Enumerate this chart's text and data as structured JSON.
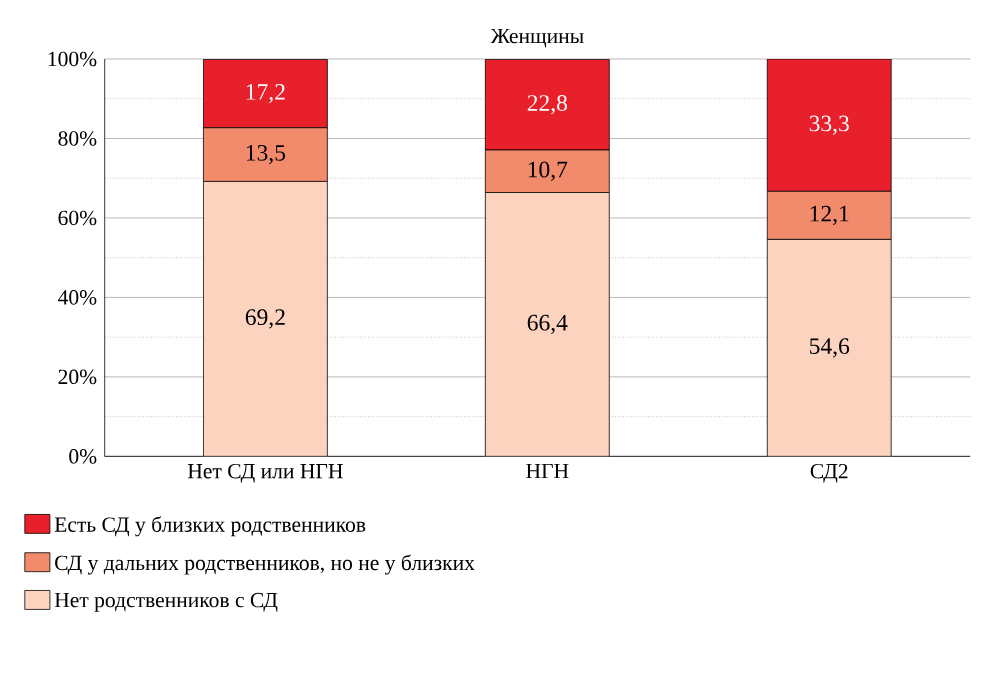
{
  "chart_data": {
    "type": "bar",
    "stacked": true,
    "title": "Женщины",
    "categories": [
      "Нет СД или НГН",
      "НГН",
      "СД2"
    ],
    "series": [
      {
        "name": "Нет родственников с СД",
        "color": "#fbd3bf",
        "values": [
          69.2,
          66.4,
          54.6
        ],
        "value_labels": [
          "69,2",
          "66,4",
          "54,6"
        ]
      },
      {
        "name": "СД у дальних родственников, но не у близких",
        "color": "#f28a6c",
        "values": [
          13.5,
          10.7,
          12.1
        ],
        "value_labels": [
          "13,5",
          "10,7",
          "12,1"
        ]
      },
      {
        "name": "Есть СД у близких родственников",
        "color": "#e8202b",
        "values": [
          17.2,
          22.8,
          33.3
        ],
        "value_labels": [
          "17,2",
          "22,8",
          "33,3"
        ]
      }
    ],
    "ylim": [
      0,
      100
    ],
    "yticks": [
      {
        "value": 0,
        "label": "0%"
      },
      {
        "value": 10,
        "label": null
      },
      {
        "value": 20,
        "label": "20%"
      },
      {
        "value": 30,
        "label": null
      },
      {
        "value": 40,
        "label": "40%"
      },
      {
        "value": 50,
        "label": null
      },
      {
        "value": 60,
        "label": "60%"
      },
      {
        "value": 70,
        "label": null
      },
      {
        "value": 80,
        "label": "80%"
      },
      {
        "value": 90,
        "label": null
      },
      {
        "value": 100,
        "label": "100%"
      }
    ],
    "grid": "y",
    "legend": "bottom"
  }
}
